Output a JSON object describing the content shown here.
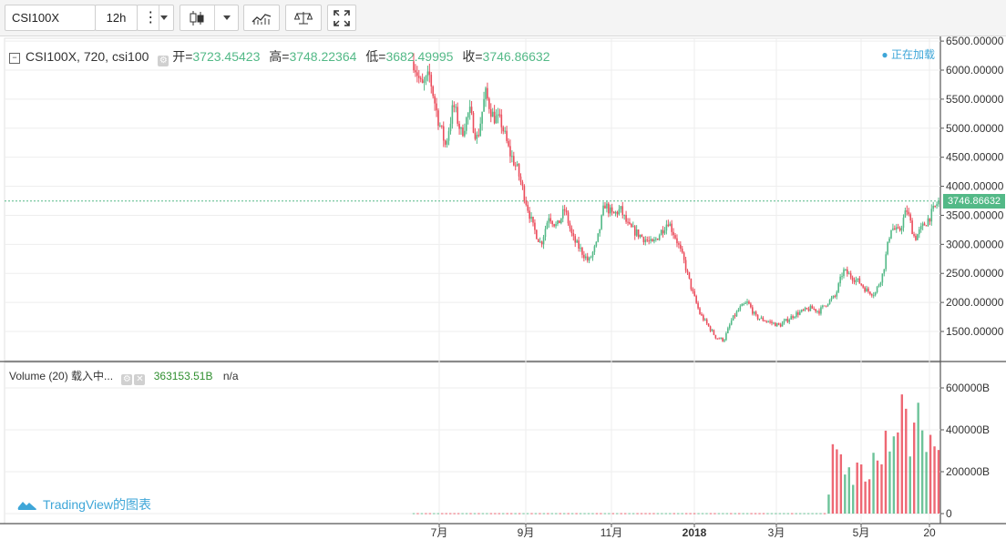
{
  "toolbar": {
    "symbol": "CSI100X",
    "interval": "12h"
  },
  "legend": {
    "symbol": "CSI100X, 720, csi100",
    "open_label": "开=",
    "open": "3723.45423",
    "high_label": "高=",
    "high": "3748.22364",
    "low_label": "低=",
    "low": "3682.49995",
    "close_label": "收=",
    "close": "3746.86632",
    "loading": "● 正在加载"
  },
  "volume_legend": {
    "title": "Volume (20) 载入中...",
    "value": "363153.51B",
    "na": "n/a"
  },
  "watermark": "TradingView的图表",
  "current_price": "3746.86632",
  "colors": {
    "up": "#53b987",
    "down": "#eb4d5c",
    "accent": "#3ea6d8"
  },
  "chart_data": {
    "type": "candlestick",
    "price_axis": {
      "ticks": [
        "6500.00000",
        "6000.00000",
        "5500.00000",
        "5000.00000",
        "4500.00000",
        "4000.00000",
        "3500.00000",
        "3000.00000",
        "2500.00000",
        "2000.00000",
        "1500.00000"
      ],
      "values": [
        6500,
        6000,
        5500,
        5000,
        4500,
        4000,
        3500,
        3000,
        2500,
        2000,
        1500
      ]
    },
    "volume_axis": {
      "ticks": [
        "600000B",
        "400000B",
        "200000B",
        "0"
      ],
      "values": [
        600000,
        400000,
        200000,
        0
      ]
    },
    "time_axis": {
      "ticks": [
        "7月",
        "9月",
        "11月",
        "2018",
        "3月",
        "5月",
        "20"
      ]
    },
    "price_path": [
      [
        0,
        6150
      ],
      [
        2,
        5700
      ],
      [
        4,
        5900
      ],
      [
        6,
        5200
      ],
      [
        8,
        4700
      ],
      [
        10,
        5400
      ],
      [
        12,
        4900
      ],
      [
        14,
        5300
      ],
      [
        16,
        4800
      ],
      [
        18,
        5600
      ],
      [
        20,
        5200
      ],
      [
        22,
        5100
      ],
      [
        24,
        4600
      ],
      [
        26,
        4300
      ],
      [
        28,
        3800
      ],
      [
        30,
        3300
      ],
      [
        32,
        3000
      ],
      [
        34,
        3500
      ],
      [
        36,
        3300
      ],
      [
        38,
        3600
      ],
      [
        40,
        3100
      ],
      [
        42,
        2900
      ],
      [
        44,
        2700
      ],
      [
        46,
        3000
      ],
      [
        48,
        3700
      ],
      [
        50,
        3500
      ],
      [
        52,
        3600
      ],
      [
        54,
        3300
      ],
      [
        56,
        3200
      ],
      [
        58,
        3100
      ],
      [
        60,
        3000
      ],
      [
        62,
        3200
      ],
      [
        64,
        3400
      ],
      [
        66,
        3100
      ],
      [
        68,
        2700
      ],
      [
        70,
        2200
      ],
      [
        72,
        1800
      ],
      [
        74,
        1600
      ],
      [
        76,
        1400
      ],
      [
        78,
        1350
      ],
      [
        80,
        1700
      ],
      [
        82,
        1900
      ],
      [
        84,
        2000
      ],
      [
        86,
        1750
      ],
      [
        88,
        1700
      ],
      [
        90,
        1650
      ],
      [
        92,
        1600
      ],
      [
        94,
        1700
      ],
      [
        96,
        1800
      ],
      [
        98,
        1850
      ],
      [
        100,
        1900
      ],
      [
        102,
        1850
      ],
      [
        104,
        2000
      ],
      [
        106,
        2100
      ],
      [
        108,
        2550
      ],
      [
        110,
        2450
      ],
      [
        112,
        2350
      ],
      [
        114,
        2200
      ],
      [
        116,
        2150
      ],
      [
        118,
        2500
      ],
      [
        120,
        3300
      ],
      [
        122,
        3200
      ],
      [
        124,
        3600
      ],
      [
        126,
        3100
      ],
      [
        128,
        3300
      ],
      [
        130,
        3500
      ],
      [
        132,
        3750
      ]
    ],
    "volume_profile": [
      [
        0,
        2000
      ],
      [
        104,
        2000
      ],
      [
        106,
        480000
      ],
      [
        107,
        280000
      ],
      [
        108,
        250000
      ],
      [
        110,
        220000
      ],
      [
        112,
        240000
      ],
      [
        114,
        230000
      ],
      [
        116,
        260000
      ],
      [
        118,
        300000
      ],
      [
        120,
        450000
      ],
      [
        122,
        620000
      ],
      [
        124,
        420000
      ],
      [
        126,
        550000
      ],
      [
        128,
        400000
      ],
      [
        130,
        380000
      ],
      [
        132,
        363154
      ]
    ],
    "close": 3746.86632,
    "grid": true
  }
}
